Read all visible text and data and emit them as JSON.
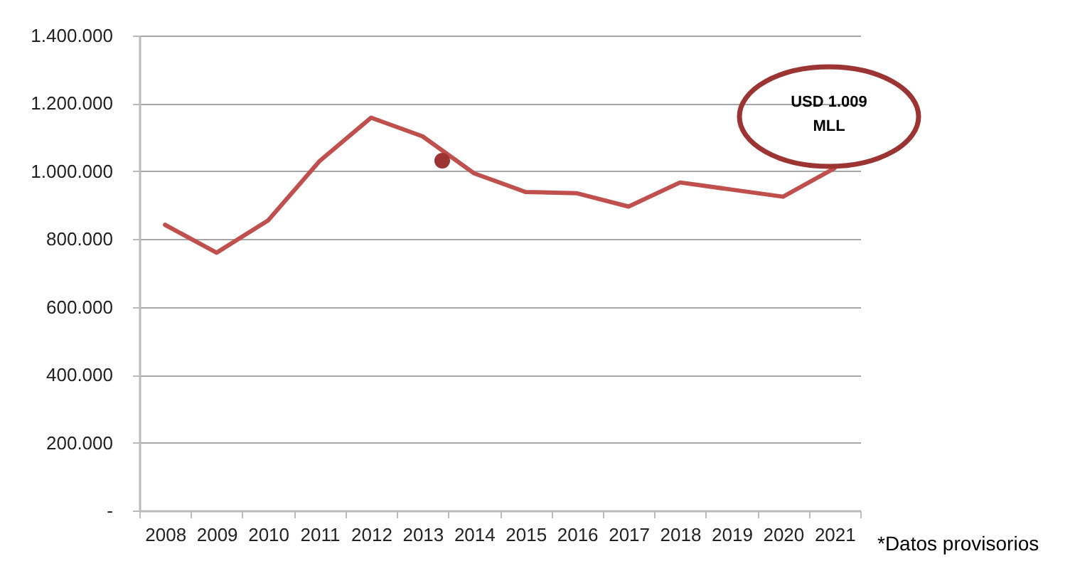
{
  "chart_data": {
    "type": "line",
    "categories": [
      "2008",
      "2009",
      "2010",
      "2011",
      "2012",
      "2013",
      "2014",
      "2015",
      "2016",
      "2017",
      "2018",
      "2019",
      "2020",
      "2021"
    ],
    "series": [
      {
        "color": "#c0504d",
        "values": [
          842000,
          760000,
          855000,
          1030000,
          1158000,
          1103000,
          994000,
          939000,
          935000,
          896000,
          967000,
          946000,
          925000,
          1009000
        ]
      }
    ],
    "ylim": [
      0,
      1400000
    ],
    "yticks": [
      {
        "value": 0,
        "label": "-"
      },
      {
        "value": 200000,
        "label": "200.000"
      },
      {
        "value": 400000,
        "label": "400.000"
      },
      {
        "value": 600000,
        "label": "600.000"
      },
      {
        "value": 800000,
        "label": "800.000"
      },
      {
        "value": 1000000,
        "label": "1.000.000"
      },
      {
        "value": 1200000,
        "label": "1.200.000"
      },
      {
        "value": 1400000,
        "label": "1.400.000"
      }
    ],
    "grid": "y",
    "annotations": [
      "USD 1.009 MLL",
      "*Datos provisorios"
    ]
  }
}
